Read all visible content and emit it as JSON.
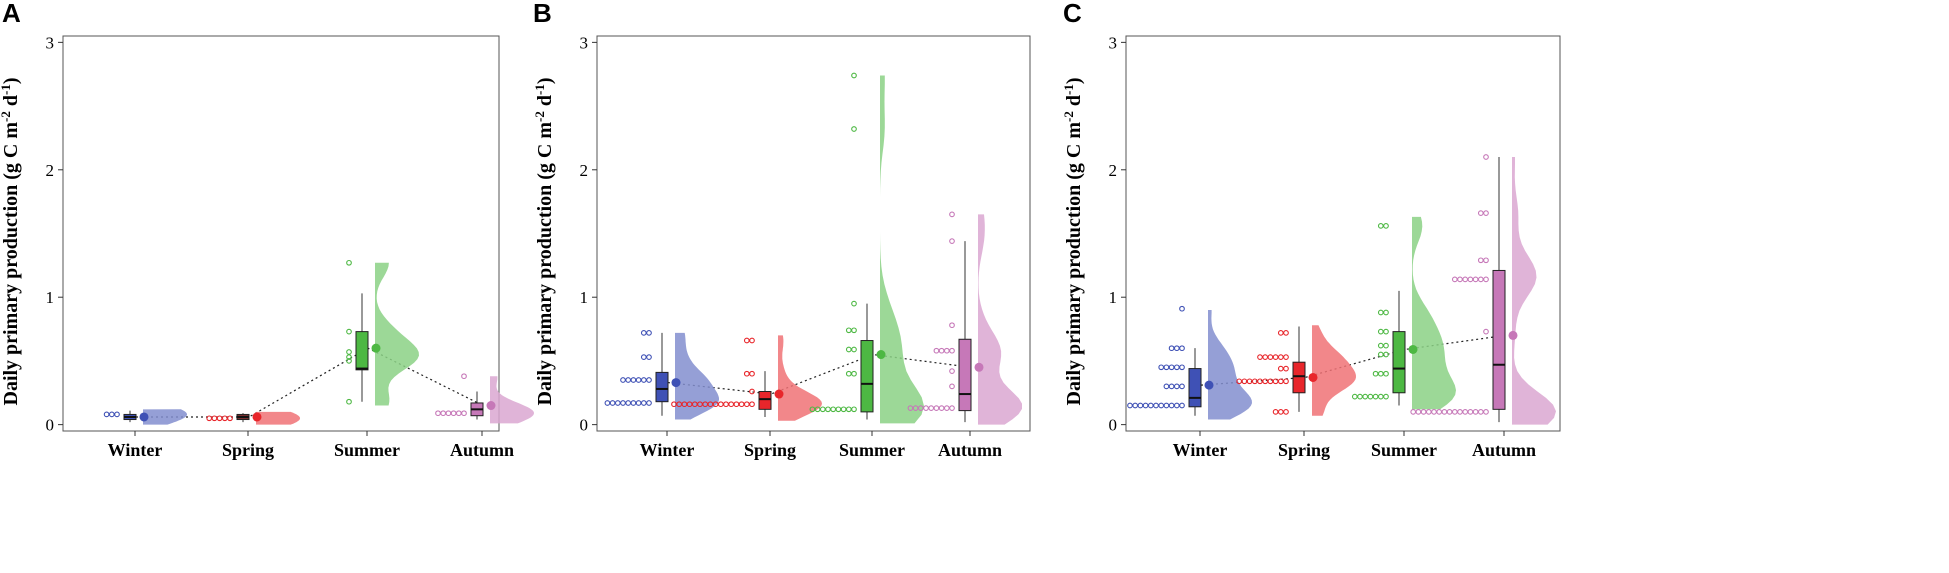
{
  "colors": {
    "Winter": "#3f51b5",
    "Spring": "#e8262b",
    "Summer": "#4db843",
    "Autumn": "#c678b8",
    "Spring_box_A": "#7a2f2f"
  },
  "chart_data": [
    {
      "panel": "A",
      "type": "raincloud",
      "ylabel": "Daily primary production (g C m",
      "ylabel_sup1": "-2",
      "ylabel_mid": " d",
      "ylabel_sup2": "-1",
      "ylabel_end": ")",
      "ylim": [
        -0.05,
        3.05
      ],
      "yticks": [
        "0",
        "1",
        "2",
        "3"
      ],
      "categories": [
        "Winter",
        "Spring",
        "Summer",
        "Autumn"
      ],
      "series": [
        {
          "name": "Winter",
          "points": [
            0.08,
            0.08,
            0.08
          ],
          "box": {
            "min": 0.02,
            "q1": 0.04,
            "median": 0.06,
            "q3": 0.08,
            "max": 0.11
          },
          "mean": 0.06,
          "violin_max": 0.12
        },
        {
          "name": "Spring",
          "points": [
            0.05,
            0.05,
            0.05,
            0.05,
            0.05
          ],
          "box": {
            "min": 0.02,
            "q1": 0.04,
            "median": 0.06,
            "q3": 0.08,
            "max": 0.09
          },
          "mean": 0.06,
          "violin_max": 0.1
        },
        {
          "name": "Summer",
          "points": [
            0.18,
            0.5,
            0.53,
            0.57,
            0.73,
            1.27
          ],
          "box": {
            "min": 0.18,
            "q1": 0.43,
            "median": 0.44,
            "q3": 0.73,
            "max": 1.03
          },
          "mean": 0.6,
          "violin_max": 1.27
        },
        {
          "name": "Autumn",
          "points": [
            0.09,
            0.09,
            0.09,
            0.09,
            0.09,
            0.09,
            0.38
          ],
          "box": {
            "min": 0.04,
            "q1": 0.07,
            "median": 0.12,
            "q3": 0.17,
            "max": 0.26
          },
          "mean": 0.15,
          "violin_max": 0.38
        }
      ]
    },
    {
      "panel": "B",
      "type": "raincloud",
      "ylabel": "Daily primary production (g C m",
      "ylabel_sup1": "-2",
      "ylabel_mid": " d",
      "ylabel_sup2": "-1",
      "ylabel_end": ")",
      "ylim": [
        -0.05,
        3.05
      ],
      "yticks": [
        "0",
        "1",
        "2",
        "3"
      ],
      "categories": [
        "Winter",
        "Spring",
        "Summer",
        "Autumn"
      ],
      "series": [
        {
          "name": "Winter",
          "points": [
            0.17,
            0.17,
            0.17,
            0.17,
            0.17,
            0.17,
            0.17,
            0.17,
            0.17,
            0.35,
            0.35,
            0.35,
            0.35,
            0.35,
            0.35,
            0.53,
            0.53,
            0.72,
            0.72
          ],
          "box": {
            "min": 0.07,
            "q1": 0.18,
            "median": 0.28,
            "q3": 0.41,
            "max": 0.72
          },
          "mean": 0.33,
          "violin_max": 0.72
        },
        {
          "name": "Spring",
          "points": [
            0.16,
            0.16,
            0.16,
            0.16,
            0.16,
            0.16,
            0.16,
            0.16,
            0.16,
            0.16,
            0.16,
            0.16,
            0.16,
            0.16,
            0.16,
            0.16,
            0.26,
            0.4,
            0.4,
            0.66,
            0.66
          ],
          "box": {
            "min": 0.06,
            "q1": 0.12,
            "median": 0.2,
            "q3": 0.26,
            "max": 0.42
          },
          "mean": 0.24,
          "violin_max": 0.7
        },
        {
          "name": "Summer",
          "points": [
            0.12,
            0.12,
            0.12,
            0.12,
            0.12,
            0.12,
            0.12,
            0.12,
            0.12,
            0.4,
            0.4,
            0.59,
            0.59,
            0.74,
            0.74,
            0.95,
            2.32,
            2.74
          ],
          "box": {
            "min": 0.04,
            "q1": 0.1,
            "median": 0.32,
            "q3": 0.66,
            "max": 0.95
          },
          "mean": 0.55,
          "violin_max": 2.74
        },
        {
          "name": "Autumn",
          "points": [
            0.13,
            0.13,
            0.13,
            0.13,
            0.13,
            0.13,
            0.13,
            0.13,
            0.13,
            0.3,
            0.42,
            0.58,
            0.58,
            0.58,
            0.58,
            0.78,
            1.44,
            1.65
          ],
          "box": {
            "min": 0.02,
            "q1": 0.11,
            "median": 0.24,
            "q3": 0.67,
            "max": 1.44
          },
          "mean": 0.45,
          "violin_max": 1.65
        }
      ]
    },
    {
      "panel": "C",
      "type": "raincloud",
      "ylabel": "Daily primary production (g C m",
      "ylabel_sup1": "-2",
      "ylabel_mid": " d",
      "ylabel_sup2": "-1",
      "ylabel_end": ")",
      "ylim": [
        -0.05,
        3.05
      ],
      "yticks": [
        "0",
        "1",
        "2",
        "3"
      ],
      "categories": [
        "Winter",
        "Spring",
        "Summer",
        "Autumn"
      ],
      "series": [
        {
          "name": "Winter",
          "points": [
            0.15,
            0.15,
            0.15,
            0.15,
            0.15,
            0.15,
            0.15,
            0.15,
            0.15,
            0.15,
            0.15,
            0.3,
            0.3,
            0.3,
            0.3,
            0.45,
            0.45,
            0.45,
            0.45,
            0.45,
            0.6,
            0.6,
            0.6,
            0.91
          ],
          "box": {
            "min": 0.07,
            "q1": 0.14,
            "median": 0.21,
            "q3": 0.44,
            "max": 0.6
          },
          "mean": 0.31,
          "violin_max": 0.9
        },
        {
          "name": "Spring",
          "points": [
            0.1,
            0.1,
            0.1,
            0.34,
            0.34,
            0.34,
            0.34,
            0.34,
            0.34,
            0.34,
            0.34,
            0.34,
            0.34,
            0.44,
            0.44,
            0.53,
            0.53,
            0.53,
            0.53,
            0.53,
            0.53,
            0.72,
            0.72
          ],
          "box": {
            "min": 0.1,
            "q1": 0.25,
            "median": 0.38,
            "q3": 0.49,
            "max": 0.77
          },
          "mean": 0.37,
          "violin_max": 0.78
        },
        {
          "name": "Summer",
          "points": [
            0.22,
            0.22,
            0.22,
            0.22,
            0.22,
            0.22,
            0.22,
            0.4,
            0.4,
            0.4,
            0.55,
            0.55,
            0.62,
            0.62,
            0.73,
            0.73,
            0.88,
            0.88,
            1.56,
            1.56
          ],
          "box": {
            "min": 0.15,
            "q1": 0.25,
            "median": 0.44,
            "q3": 0.73,
            "max": 1.05
          },
          "mean": 0.59,
          "violin_max": 1.63
        },
        {
          "name": "Autumn",
          "points": [
            0.1,
            0.1,
            0.1,
            0.1,
            0.1,
            0.1,
            0.1,
            0.1,
            0.1,
            0.1,
            0.1,
            0.1,
            0.1,
            0.1,
            0.1,
            0.73,
            1.14,
            1.14,
            1.14,
            1.14,
            1.14,
            1.14,
            1.14,
            1.29,
            1.29,
            1.66,
            1.66,
            2.1
          ],
          "box": {
            "min": 0.02,
            "q1": 0.12,
            "median": 0.47,
            "q3": 1.21,
            "max": 2.1
          },
          "mean": 0.7,
          "violin_max": 2.1
        }
      ]
    }
  ]
}
